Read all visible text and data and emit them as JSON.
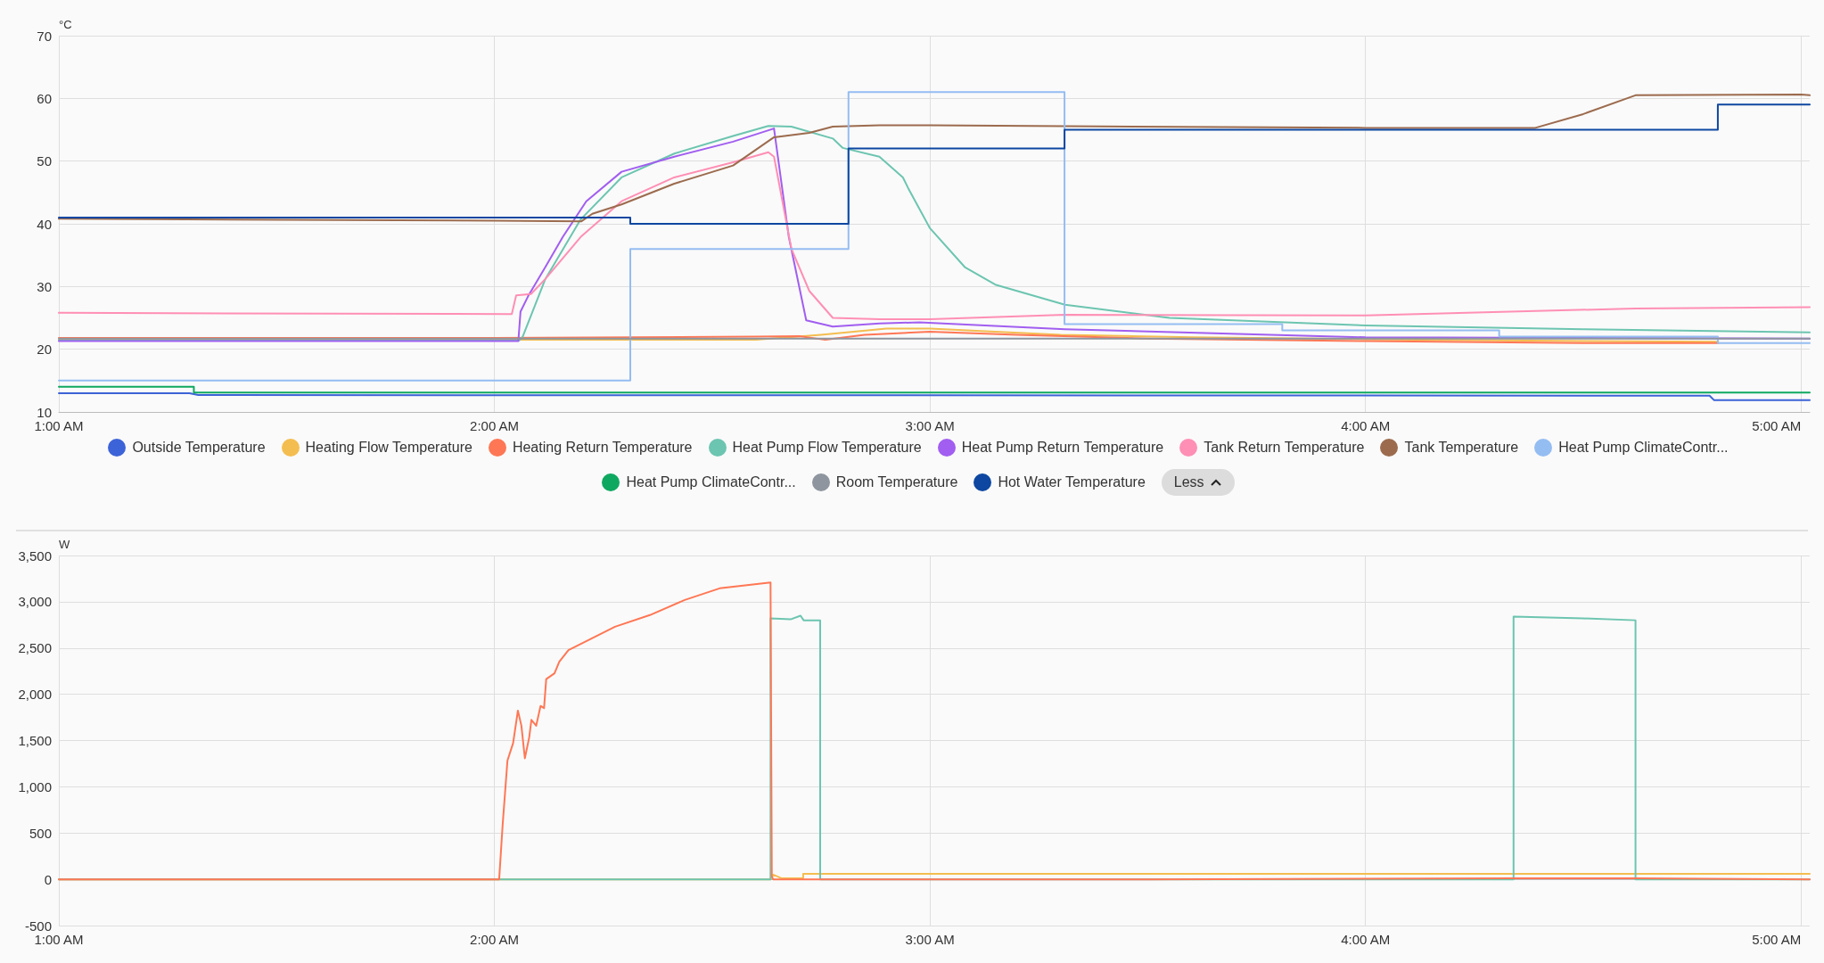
{
  "chart_data": [
    {
      "type": "line",
      "ylabel": "°C",
      "xlim": [
        1,
        5.02
      ],
      "xticks": [
        {
          "value": 1,
          "label": "1:00 AM"
        },
        {
          "value": 2,
          "label": "2:00 AM"
        },
        {
          "value": 3,
          "label": "3:00 AM"
        },
        {
          "value": 4,
          "label": "4:00 AM"
        },
        {
          "value": 5,
          "label": "5:00 AM"
        }
      ],
      "ylim": [
        10,
        70
      ],
      "yticks": [
        10,
        20,
        30,
        40,
        50,
        60,
        70
      ],
      "grid": true,
      "legend": "bottom",
      "marker": "none",
      "annotations": [
        "Less"
      ],
      "series": [
        {
          "name": "Outside Temperature",
          "color": "#3d63d8",
          "x": [
            1,
            1.3,
            1.32,
            4.79,
            4.8,
            5.02
          ],
          "values": [
            13.0,
            13.0,
            12.7,
            12.6,
            11.9,
            11.9
          ]
        },
        {
          "name": "Heating Flow Temperature",
          "color": "#f4bd4f",
          "x": [
            1,
            2.6,
            2.75,
            2.9,
            3.0,
            3.3,
            3.6,
            4.0,
            4.5,
            4.81
          ],
          "values": [
            21.5,
            21.5,
            22.3,
            23.3,
            23.3,
            22.3,
            21.9,
            21.6,
            21.3,
            21.2
          ]
        },
        {
          "name": "Heating Return Temperature",
          "color": "#ff7755",
          "x": [
            1,
            2.0,
            2.6,
            2.7,
            2.76,
            2.85,
            3.0,
            3.2,
            3.5,
            4.0,
            4.5,
            4.81
          ],
          "values": [
            21.8,
            21.8,
            22.0,
            22.1,
            21.5,
            22.3,
            22.8,
            22.3,
            21.7,
            21.3,
            21.0,
            21.0
          ]
        },
        {
          "name": "Heat Pump Flow Temperature",
          "color": "#6cc5b0",
          "x": [
            1,
            2.057,
            2.065,
            2.117,
            2.198,
            2.292,
            2.413,
            2.548,
            2.629,
            2.682,
            2.777,
            2.8,
            2.884,
            2.938,
            2.95,
            3.0,
            3.08,
            3.15,
            3.31,
            3.55,
            4.0,
            4.5,
            5.02
          ],
          "values": [
            21.4,
            21.4,
            22,
            31.2,
            40.7,
            47.4,
            51.2,
            54,
            55.6,
            55.5,
            53.6,
            52.1,
            50.7,
            47.4,
            45.7,
            39.3,
            33.1,
            30.3,
            27.1,
            25,
            23.8,
            23.2,
            22.7
          ]
        },
        {
          "name": "Heat Pump Return Temperature",
          "color": "#a15ef0",
          "x": [
            1,
            2.055,
            2.06,
            2.077,
            2.117,
            2.157,
            2.211,
            2.292,
            2.413,
            2.548,
            2.642,
            2.676,
            2.716,
            2.777,
            2.884,
            2.976,
            3.31,
            4.0,
            5.02
          ],
          "values": [
            21.3,
            21.3,
            26,
            28.4,
            33.1,
            37.9,
            43.6,
            48.3,
            50.7,
            53.1,
            55.2,
            37.9,
            24.6,
            23.6,
            24.1,
            24.3,
            23.2,
            21.9,
            21.7
          ]
        },
        {
          "name": "Tank Return Temperature",
          "color": "#ff8fb4",
          "x": [
            1,
            2.04,
            2.05,
            2.084,
            2.117,
            2.198,
            2.292,
            2.413,
            2.548,
            2.629,
            2.642,
            2.682,
            2.723,
            2.777,
            2.884,
            3.0,
            3.31,
            4.0,
            4.62,
            5.02
          ],
          "values": [
            25.8,
            25.6,
            28.6,
            28.8,
            31.2,
            37.9,
            43.6,
            47.4,
            49.8,
            51.4,
            50.7,
            36,
            29.3,
            25,
            24.8,
            24.8,
            25.5,
            25.4,
            26.5,
            26.7
          ]
        },
        {
          "name": "Tank Temperature",
          "color": "#9c6b4e",
          "x": [
            1,
            2.0,
            2.2,
            2.225,
            2.292,
            2.413,
            2.548,
            2.642,
            2.723,
            2.777,
            2.884,
            3.0,
            4.0,
            4.39,
            4.5,
            4.62,
            5.0,
            5.02
          ],
          "values": [
            40.8,
            40.5,
            40.4,
            41.6,
            43.1,
            46.4,
            49.3,
            53.8,
            54.5,
            55.5,
            55.7,
            55.7,
            55.3,
            55.3,
            57.5,
            60.5,
            60.6,
            60.5
          ]
        },
        {
          "name": "Heat Pump ClimateContr...",
          "color": "#94bdf2",
          "x": [
            1,
            2.312,
            2.312,
            2.813,
            2.813,
            3.309,
            3.309,
            3.809,
            3.809,
            4.307,
            4.307,
            4.809,
            4.809,
            5.02
          ],
          "values": [
            15,
            15,
            36,
            36,
            61,
            61,
            24,
            24,
            23,
            23,
            22,
            22,
            21,
            21
          ]
        },
        {
          "name": "Heat Pump ClimateContr...",
          "color": "#0fa860",
          "x": [
            1,
            1.31,
            1.31,
            5.02
          ],
          "values": [
            14,
            14,
            13.1,
            13.1
          ]
        },
        {
          "name": "Room Temperature",
          "color": "#8e959e",
          "x": [
            1,
            5.02
          ],
          "values": [
            21.7,
            21.7
          ]
        },
        {
          "name": "Hot Water Temperature",
          "color": "#0d47a1",
          "x": [
            1,
            2.312,
            2.312,
            2.813,
            2.813,
            3.309,
            3.309,
            4.809,
            4.809,
            5.02
          ],
          "values": [
            41,
            41,
            40,
            40,
            52,
            52,
            55,
            55,
            59,
            59
          ]
        }
      ]
    },
    {
      "type": "line",
      "ylabel": "W",
      "xlim": [
        1,
        5.02
      ],
      "xticks": [
        {
          "value": 1,
          "label": "1:00 AM"
        },
        {
          "value": 2,
          "label": "2:00 AM"
        },
        {
          "value": 3,
          "label": "3:00 AM"
        },
        {
          "value": 4,
          "label": "4:00 AM"
        },
        {
          "value": 5,
          "label": "5:00 AM"
        }
      ],
      "ylim": [
        -500,
        3500
      ],
      "yticks": [
        {
          "value": -500,
          "label": "-500"
        },
        {
          "value": 0,
          "label": "0"
        },
        {
          "value": 500,
          "label": "500"
        },
        {
          "value": 1000,
          "label": "1,000"
        },
        {
          "value": 1500,
          "label": "1,500"
        },
        {
          "value": 2000,
          "label": "2,000"
        },
        {
          "value": 2500,
          "label": "2,500"
        },
        {
          "value": 3000,
          "label": "3,000"
        },
        {
          "value": 3500,
          "label": "3,500"
        }
      ],
      "grid": true,
      "marker": "none",
      "series": [
        {
          "color": "#f4bd4f",
          "x": [
            1,
            2.634,
            2.64,
            2.66,
            2.709,
            2.709,
            5.02
          ],
          "values": [
            0,
            0,
            50,
            10,
            10,
            60,
            60
          ]
        },
        {
          "color": "#6cc5b0",
          "x": [
            1,
            2.634,
            2.634,
            2.68,
            2.703,
            2.71,
            2.748,
            2.748,
            4.34,
            4.34,
            4.5,
            4.62,
            4.62,
            5.02
          ],
          "values": [
            0,
            0,
            2820,
            2810,
            2850,
            2800,
            2800,
            0,
            0,
            2840,
            2820,
            2800,
            0,
            0
          ]
        },
        {
          "color": "#ff7755",
          "x": [
            1,
            2.011,
            2.019,
            2.03,
            2.043,
            2.054,
            2.062,
            2.07,
            2.08,
            2.085,
            2.096,
            2.106,
            2.114,
            2.119,
            2.138,
            2.149,
            2.17,
            2.224,
            2.277,
            2.357,
            2.437,
            2.517,
            2.634,
            2.637,
            2.64,
            2.75,
            3.5,
            4.34,
            4.62,
            5.02
          ],
          "values": [
            0,
            0,
            591,
            1283,
            1472,
            1824,
            1660,
            1308,
            1535,
            1723,
            1660,
            1874,
            1850,
            2164,
            2227,
            2352,
            2478,
            2604,
            2730,
            2856,
            3019,
            3145,
            3208,
            30,
            0,
            0,
            0,
            10,
            10,
            0
          ]
        }
      ]
    }
  ]
}
